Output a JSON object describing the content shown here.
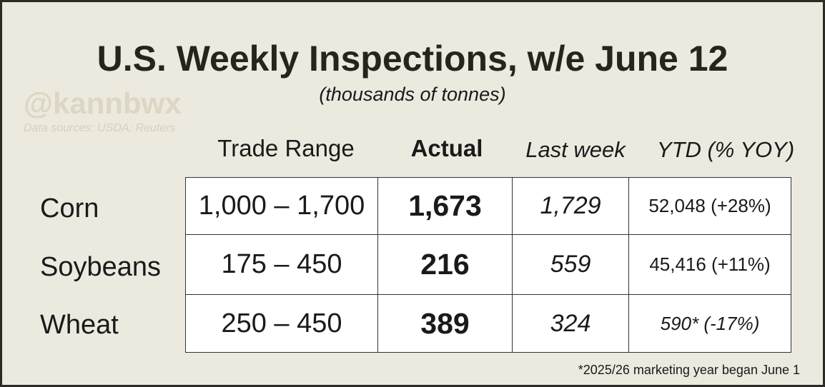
{
  "title": "U.S. Weekly Inspections, w/e June 12",
  "subtitle": "(thousands of tonnes)",
  "watermark": "@kannbwx",
  "source": "Data sources: USDA; Reuters",
  "table": {
    "headers": [
      "Trade Range",
      "Actual",
      "Last week",
      "YTD (% YOY)"
    ],
    "rows": [
      [
        "Corn",
        "1,000 – 1,700",
        "1,673",
        "1,729",
        "52,048 (+28%)"
      ],
      [
        "Soybeans",
        "175 – 450",
        "216",
        "559",
        "45,416 (+11%)"
      ],
      [
        "Wheat",
        "250 – 450",
        "389",
        "324",
        "590* (-17%)"
      ]
    ]
  },
  "footnote": "*2025/26 marketing year began June 1"
}
